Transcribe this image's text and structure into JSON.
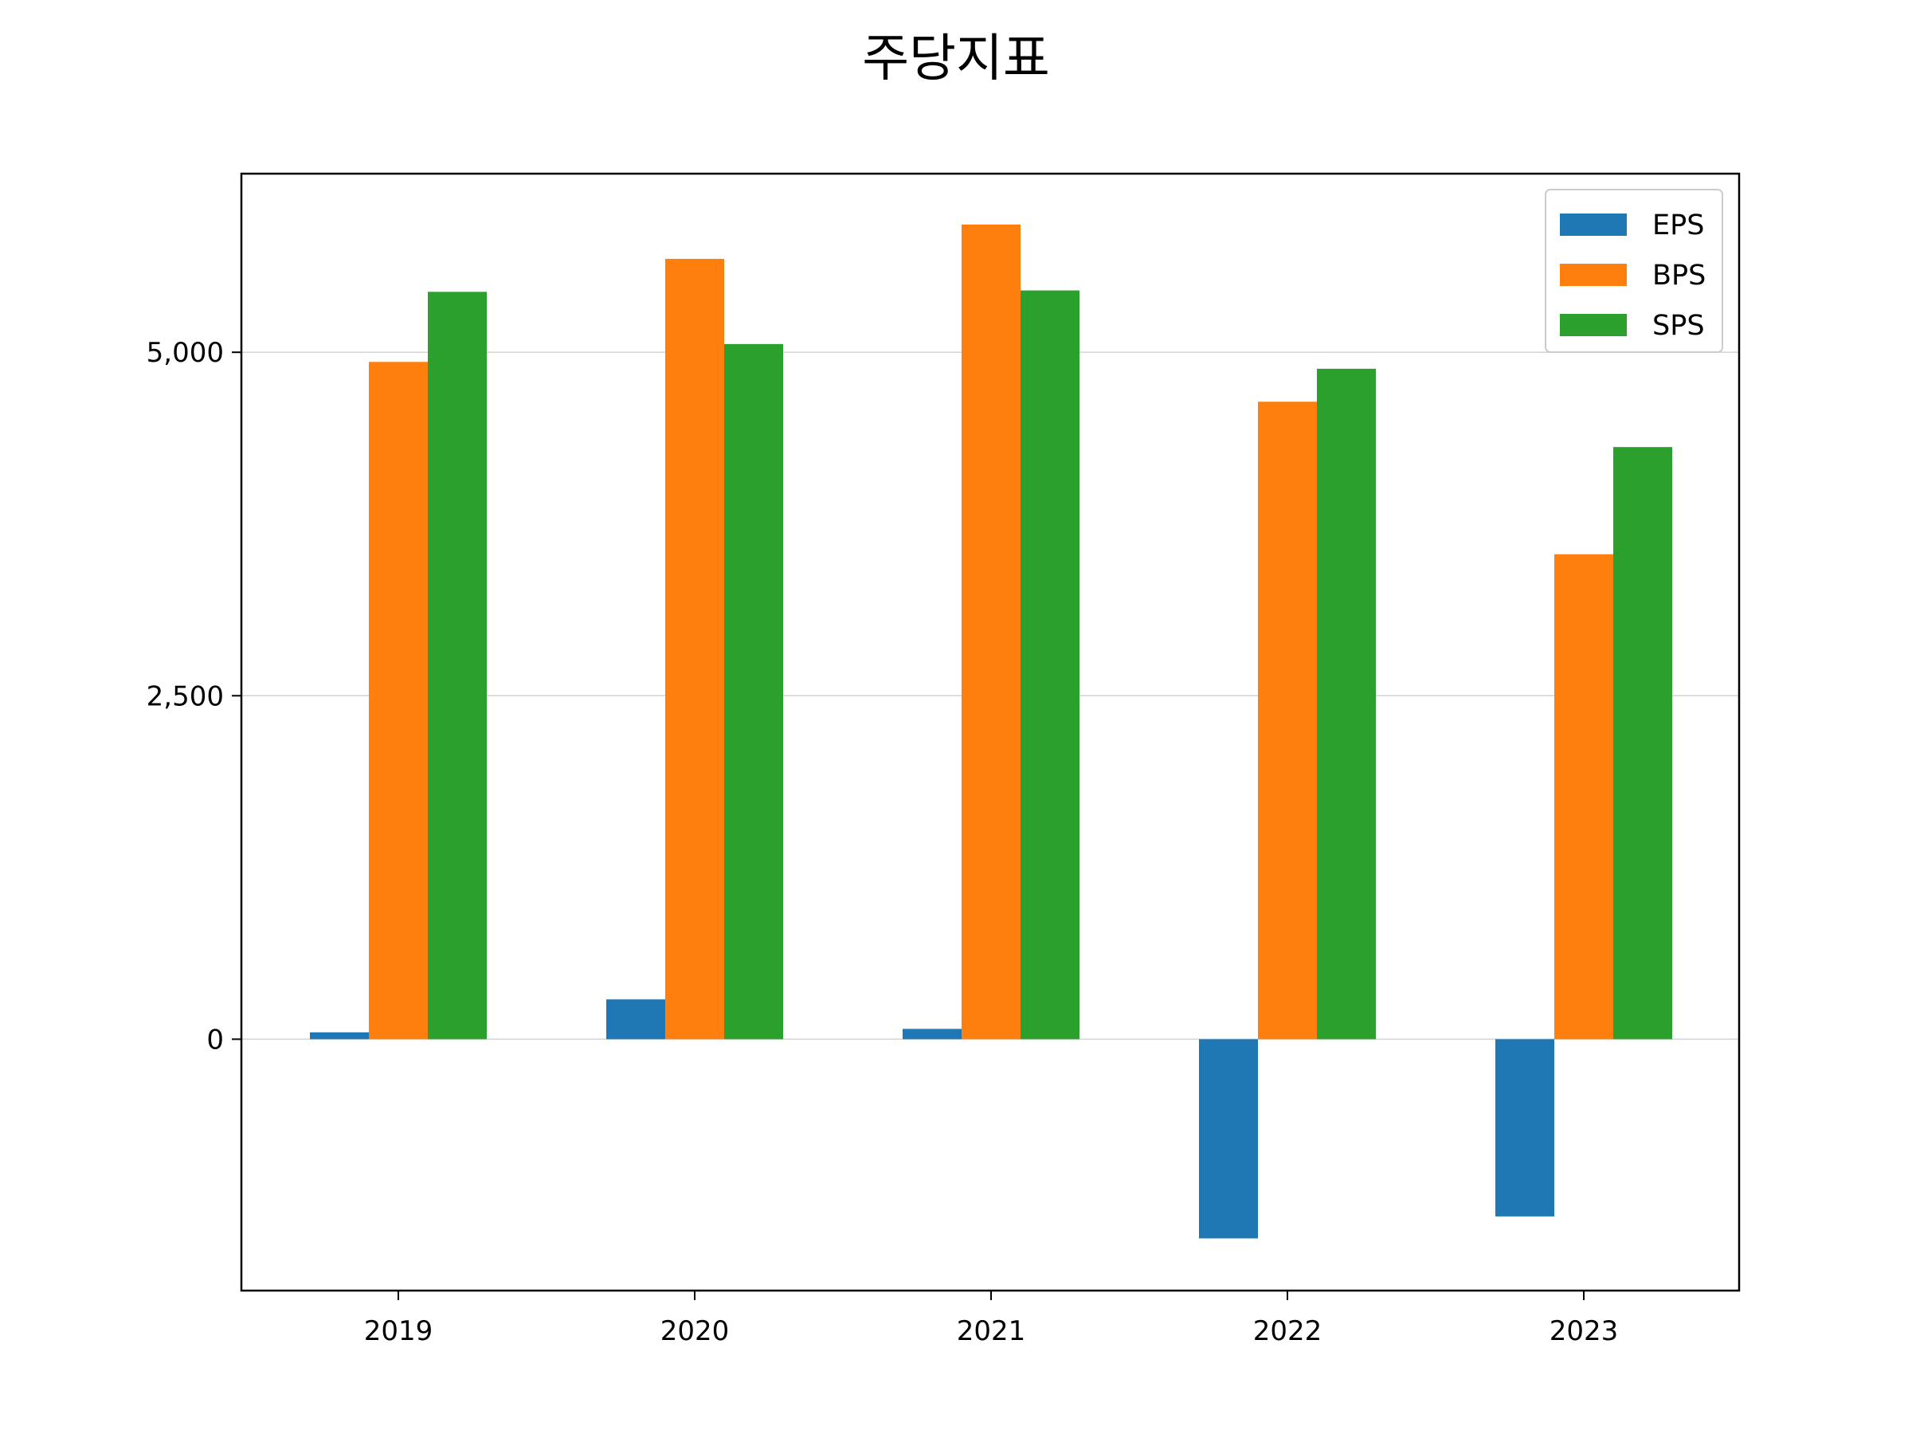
{
  "chart_data": {
    "type": "bar",
    "title": "주당지표",
    "xlabel": "",
    "ylabel": "",
    "categories": [
      "2019",
      "2020",
      "2021",
      "2022",
      "2023"
    ],
    "series": [
      {
        "name": "EPS",
        "color": "#1f77b4",
        "values": [
          50,
          290,
          75,
          -1450,
          -1290
        ]
      },
      {
        "name": "BPS",
        "color": "#ff7f0e",
        "values": [
          4930,
          5680,
          5930,
          4640,
          3530
        ]
      },
      {
        "name": "SPS",
        "color": "#2ca02c",
        "values": [
          5440,
          5060,
          5450,
          4880,
          4310
        ]
      }
    ],
    "yticks": [
      0,
      2500,
      5000
    ],
    "ytick_labels": [
      "0",
      "2,500",
      "5,000"
    ],
    "ylim": [
      -1830,
      6300
    ],
    "grid": "y",
    "legend": "top-right"
  }
}
